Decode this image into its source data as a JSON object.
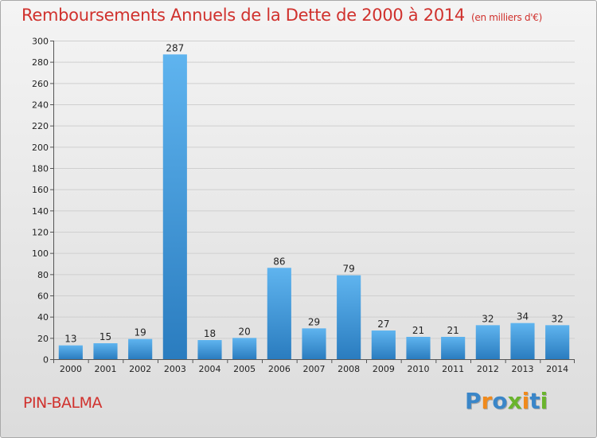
{
  "header": {
    "title": "Remboursements Annuels de la Dette de 2000 à 2014",
    "unit": "(en milliers d'€)"
  },
  "footer": {
    "city": "PIN-BALMA",
    "logo_letters": [
      {
        "char": "P",
        "color": "#3a86c8"
      },
      {
        "char": "r",
        "color": "#f08a1c"
      },
      {
        "char": "o",
        "color": "#3a86c8"
      },
      {
        "char": "x",
        "color": "#6ab42d"
      },
      {
        "char": "i",
        "color": "#f08a1c"
      },
      {
        "char": "t",
        "color": "#3a86c8"
      },
      {
        "char": "i",
        "color": "#6ab42d"
      }
    ]
  },
  "chart_data": {
    "type": "bar",
    "title": "Remboursements Annuels de la Dette de 2000 à 2014",
    "xlabel": "",
    "ylabel": "",
    "categories": [
      "2000",
      "2001",
      "2002",
      "2003",
      "2004",
      "2005",
      "2006",
      "2007",
      "2008",
      "2009",
      "2010",
      "2011",
      "2012",
      "2013",
      "2014"
    ],
    "values": [
      13,
      15,
      19,
      287,
      18,
      20,
      86,
      29,
      79,
      27,
      21,
      21,
      32,
      34,
      32
    ],
    "ylim": [
      0,
      300
    ],
    "yticks": [
      0,
      20,
      40,
      60,
      80,
      100,
      120,
      140,
      160,
      180,
      200,
      220,
      240,
      260,
      280,
      300
    ],
    "grid": true,
    "bar_color": "#3d95de"
  }
}
